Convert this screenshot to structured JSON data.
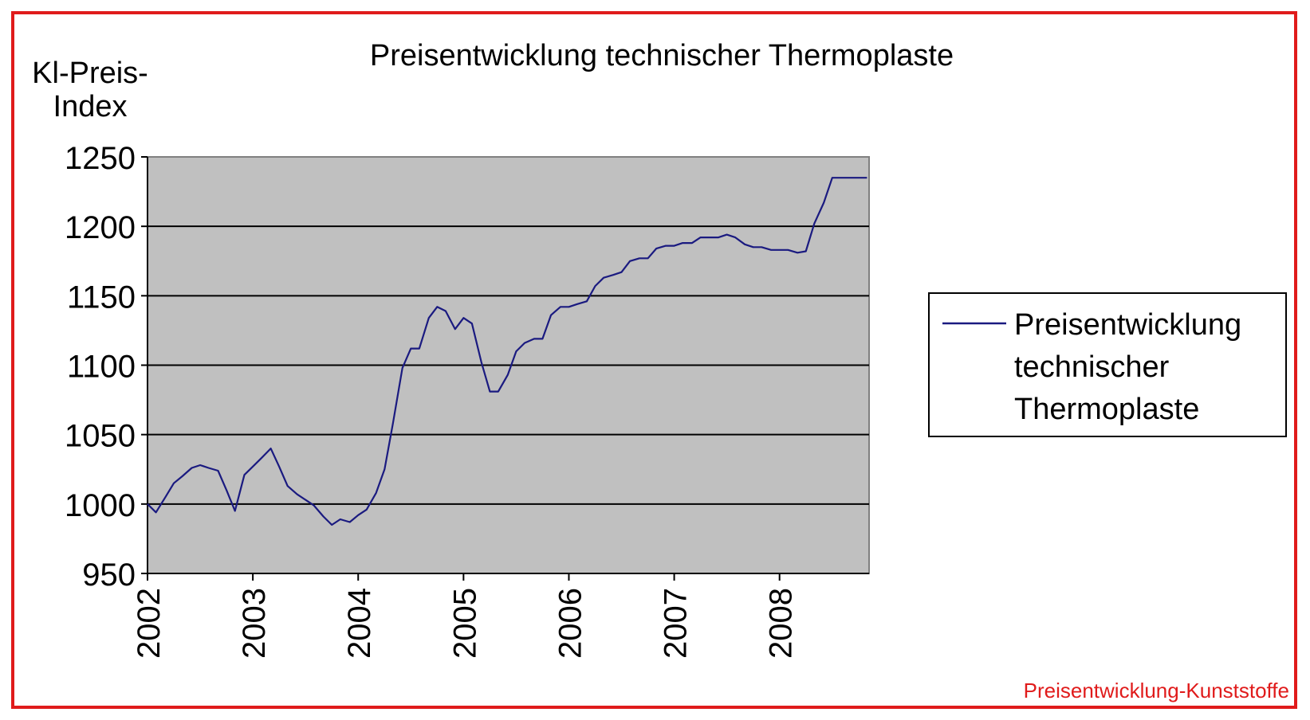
{
  "frame": {
    "border_color": "#e01b1b"
  },
  "watermark": {
    "text": "Preisentwicklung-Kunststoffe",
    "color": "#e01b1b"
  },
  "chart_data": {
    "type": "line",
    "title": "Preisentwicklung technischer Thermoplaste",
    "ylabel_lines": [
      "Kl-Preis-",
      "Index"
    ],
    "xlabel": "",
    "ylim": [
      950,
      1250
    ],
    "yticks": [
      950,
      1000,
      1050,
      1100,
      1150,
      1200,
      1250
    ],
    "xlim": [
      2002.0,
      2008.85
    ],
    "xticks": [
      2002,
      2003,
      2004,
      2005,
      2006,
      2007,
      2008
    ],
    "grid": true,
    "plot_background": "#c0c0c0",
    "legend_position": "right",
    "series": [
      {
        "name_lines": [
          "Preisentwicklung",
          "technischer",
          "Thermoplaste"
        ],
        "color": "#1a1a80",
        "x": [
          2002.0,
          2002.08,
          2002.17,
          2002.25,
          2002.33,
          2002.42,
          2002.5,
          2002.58,
          2002.67,
          2002.75,
          2002.83,
          2002.92,
          2003.0,
          2003.08,
          2003.17,
          2003.25,
          2003.33,
          2003.42,
          2003.5,
          2003.58,
          2003.67,
          2003.75,
          2003.83,
          2003.92,
          2004.0,
          2004.08,
          2004.17,
          2004.25,
          2004.33,
          2004.42,
          2004.5,
          2004.58,
          2004.67,
          2004.75,
          2004.83,
          2004.92,
          2005.0,
          2005.08,
          2005.17,
          2005.25,
          2005.33,
          2005.42,
          2005.5,
          2005.58,
          2005.67,
          2005.75,
          2005.83,
          2005.92,
          2006.0,
          2006.08,
          2006.17,
          2006.25,
          2006.33,
          2006.42,
          2006.5,
          2006.58,
          2006.67,
          2006.75,
          2006.83,
          2006.92,
          2007.0,
          2007.08,
          2007.17,
          2007.25,
          2007.33,
          2007.42,
          2007.5,
          2007.58,
          2007.67,
          2007.75,
          2007.83,
          2007.92,
          2008.0,
          2008.08,
          2008.17,
          2008.25,
          2008.33,
          2008.42,
          2008.5,
          2008.58,
          2008.67,
          2008.75,
          2008.83
        ],
        "values": [
          1000,
          994,
          1005,
          1015,
          1020,
          1026,
          1028,
          1026,
          1024,
          1010,
          995,
          1021,
          1027,
          1033,
          1040,
          1027,
          1013,
          1007,
          1003,
          999,
          991,
          985,
          989,
          987,
          992,
          996,
          1008,
          1025,
          1058,
          1098,
          1112,
          1112,
          1134,
          1142,
          1139,
          1126,
          1134,
          1130,
          1102,
          1081,
          1081,
          1093,
          1110,
          1116,
          1119,
          1119,
          1136,
          1142,
          1142,
          1144,
          1146,
          1157,
          1163,
          1165,
          1167,
          1175,
          1177,
          1177,
          1184,
          1186,
          1186,
          1188,
          1188,
          1192,
          1192,
          1192,
          1194,
          1192,
          1187,
          1185,
          1185,
          1183,
          1183,
          1183,
          1181,
          1182,
          1202,
          1217,
          1235,
          1235,
          1235,
          1235,
          1235
        ]
      }
    ]
  }
}
